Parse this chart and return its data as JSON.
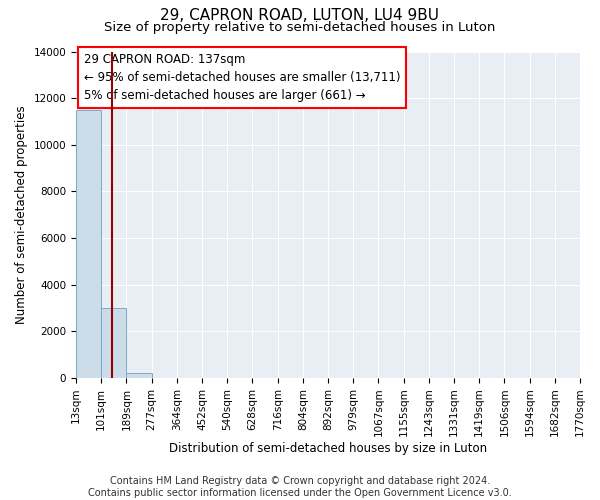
{
  "title": "29, CAPRON ROAD, LUTON, LU4 9BU",
  "subtitle": "Size of property relative to semi-detached houses in Luton",
  "xlabel": "Distribution of semi-detached houses by size in Luton",
  "ylabel": "Number of semi-detached properties",
  "annotation_line1": "29 CAPRON ROAD: 137sqm",
  "annotation_line2": "← 95% of semi-detached houses are smaller (13,711)",
  "annotation_line3": "5% of semi-detached houses are larger (661) →",
  "footer_line1": "Contains HM Land Registry data © Crown copyright and database right 2024.",
  "footer_line2": "Contains public sector information licensed under the Open Government Licence v3.0.",
  "bin_labels": [
    "13sqm",
    "101sqm",
    "189sqm",
    "277sqm",
    "364sqm",
    "452sqm",
    "540sqm",
    "628sqm",
    "716sqm",
    "804sqm",
    "892sqm",
    "979sqm",
    "1067sqm",
    "1155sqm",
    "1243sqm",
    "1331sqm",
    "1419sqm",
    "1506sqm",
    "1594sqm",
    "1682sqm",
    "1770sqm"
  ],
  "bar_values": [
    11500,
    3000,
    200,
    0,
    0,
    0,
    0,
    0,
    0,
    0,
    0,
    0,
    0,
    0,
    0,
    0,
    0,
    0,
    0,
    0
  ],
  "bar_color": "#ccdce8",
  "bar_edge_color": "#7aaac8",
  "ylim": [
    0,
    14000
  ],
  "yticks": [
    0,
    2000,
    4000,
    6000,
    8000,
    10000,
    12000,
    14000
  ],
  "bg_color": "#e8eef4",
  "grid_color": "#ffffff",
  "title_fontsize": 11,
  "subtitle_fontsize": 9.5,
  "axis_label_fontsize": 8.5,
  "tick_fontsize": 7.5,
  "footer_fontsize": 7,
  "ann_fontsize": 8.5
}
